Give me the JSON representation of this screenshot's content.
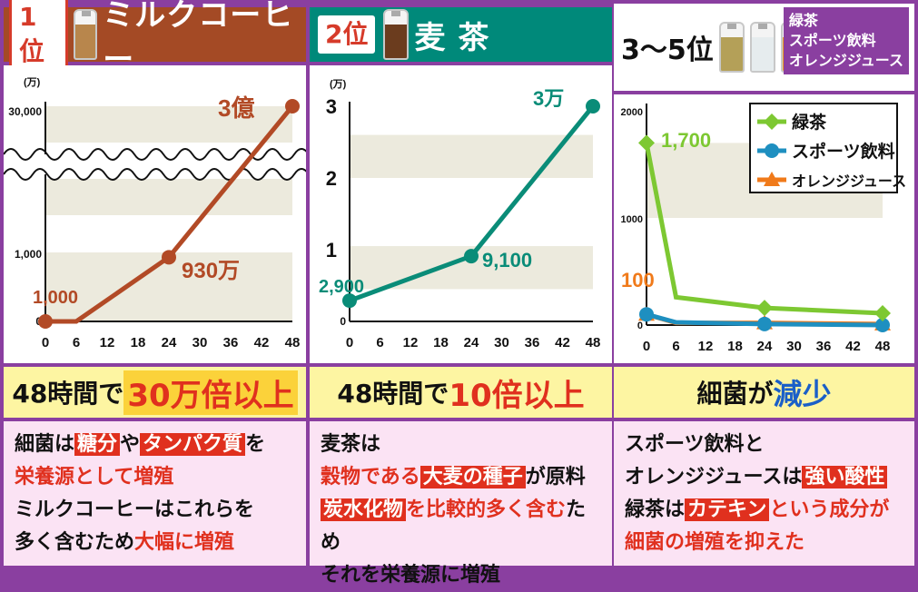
{
  "columns": [
    {
      "rank": "1位",
      "title": "ミルクコーヒー",
      "bottle_color": "#b8864c",
      "banner": {
        "prefix": "48時間で",
        "highlight": "30万倍以上"
      },
      "desc": {
        "l1": {
          "a": "細菌は",
          "t1": "糖分",
          "b": "や",
          "t2": "タンパク質",
          "c": "を"
        },
        "l2": "栄養源として増殖",
        "l3": "ミルクコーヒーはこれらを",
        "l4": {
          "a": "多く含むため",
          "r": "大幅に増殖"
        }
      }
    },
    {
      "rank": "2位",
      "title": "麦 茶",
      "bottle_color": "#6b3c1e",
      "banner": {
        "prefix": "48時間で",
        "highlight": "10倍以上"
      },
      "desc": {
        "l1": "麦茶は",
        "l2": {
          "a": "穀物である",
          "t1": "大麦の種子",
          "b": "が原料"
        },
        "l3": {
          "t1": "炭水化物",
          "a": "を比較的多く含む",
          "b": "ため"
        },
        "l4": "それを栄養源に増殖"
      }
    },
    {
      "rank": "3〜5位",
      "legend_text": [
        "緑茶",
        "スポーツ飲料",
        "オレンジジュース"
      ],
      "banner": {
        "prefix": "細菌が",
        "highlight": "減少"
      },
      "desc": {
        "l1": "スポーツ飲料と",
        "l2": {
          "a": "オレンジジュースは",
          "t1": "強い酸性"
        },
        "l3": {
          "a": "緑茶は",
          "t1": "カテキン",
          "b": "という成分が"
        },
        "l4": "細菌の増殖を抑えた"
      }
    }
  ],
  "chart_data": [
    {
      "type": "line",
      "ylabel": "(万)",
      "x": [
        0,
        6,
        24,
        48
      ],
      "xticks": [
        "0",
        "6",
        "12",
        "18",
        "24",
        "30",
        "36",
        "42",
        "48"
      ],
      "yticks": [
        "0",
        "1,000",
        "30,000"
      ],
      "series": [
        {
          "values": [
            0.1,
            0.1,
            930,
            30000
          ],
          "color": "#b24a26"
        }
      ],
      "labels": [
        "1,000",
        "930万",
        "3億"
      ],
      "axis_break": true
    },
    {
      "type": "line",
      "ylabel": "(万)",
      "x": [
        0,
        24,
        48
      ],
      "xticks": [
        "0",
        "6",
        "12",
        "18",
        "24",
        "30",
        "36",
        "42",
        "48"
      ],
      "yticks": [
        "0",
        "1",
        "2",
        "3"
      ],
      "ylim": [
        0,
        3
      ],
      "series": [
        {
          "values": [
            0.29,
            0.91,
            3
          ],
          "color": "#0a8c78"
        }
      ],
      "labels": [
        "2,900",
        "9,100",
        "3万"
      ]
    },
    {
      "type": "line",
      "x": [
        0,
        6,
        24,
        48
      ],
      "xticks": [
        "0",
        "6",
        "12",
        "18",
        "24",
        "30",
        "36",
        "42",
        "48"
      ],
      "yticks": [
        "0",
        "1000",
        "2000"
      ],
      "ylim": [
        0,
        2000
      ],
      "legend": "top-right",
      "series": [
        {
          "name": "緑茶",
          "values": [
            1700,
            260,
            160,
            110
          ],
          "color": "#7dc832",
          "marker": "diamond"
        },
        {
          "name": "スポーツ飲料",
          "values": [
            100,
            25,
            10,
            0
          ],
          "color": "#1e8fc0",
          "marker": "circle"
        },
        {
          "name": "オレンジジュース",
          "values": [
            100,
            20,
            20,
            10
          ],
          "color": "#f07a1a",
          "marker": "triangle"
        }
      ],
      "labels": [
        "1,700",
        "100"
      ]
    }
  ]
}
